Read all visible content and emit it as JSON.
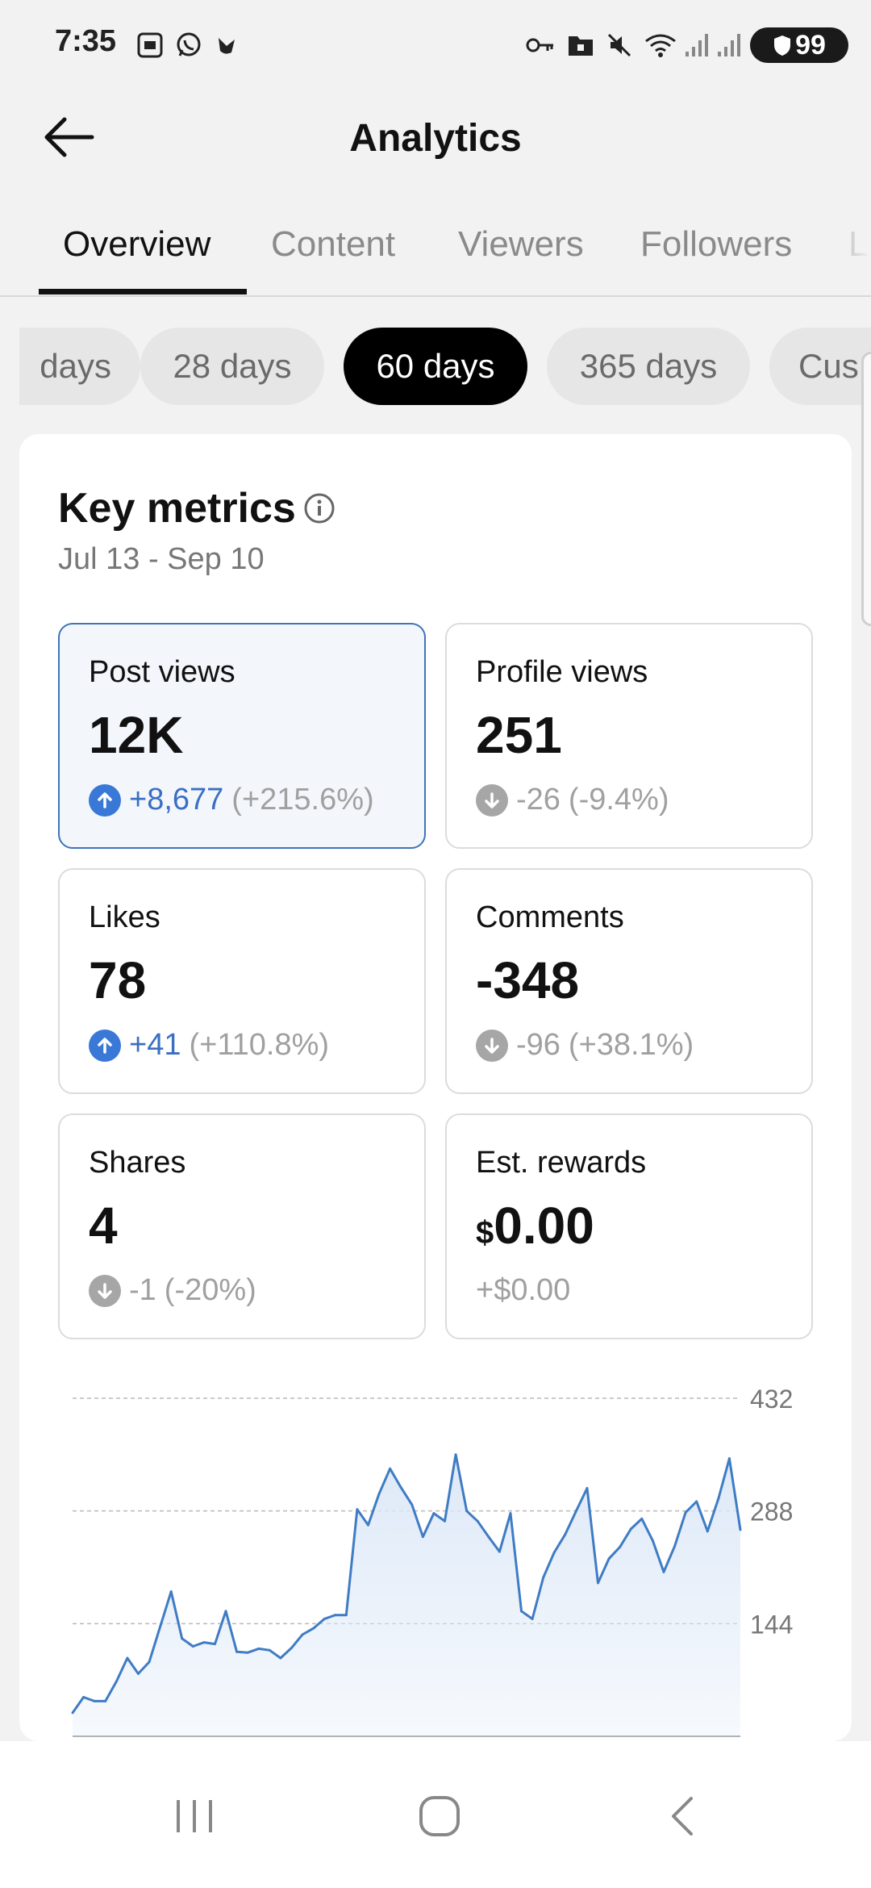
{
  "status_bar": {
    "time": "7:35",
    "left_icons": [
      "screenshot-icon",
      "whatsapp-icon",
      "bird-icon"
    ],
    "right_icons": [
      "key-icon",
      "folder-lock-icon",
      "mute-icon",
      "wifi-icon",
      "signal-icon",
      "signal-icon"
    ],
    "battery": "99"
  },
  "header": {
    "title": "Analytics",
    "back_icon": "arrow-left-icon"
  },
  "tabs": [
    {
      "label": "Overview",
      "active": true
    },
    {
      "label": "Content",
      "active": false
    },
    {
      "label": "Viewers",
      "active": false
    },
    {
      "label": "Followers",
      "active": false
    },
    {
      "label": "L",
      "active": false
    }
  ],
  "ranges": [
    {
      "label": "days",
      "active": false
    },
    {
      "label": "28 days",
      "active": false
    },
    {
      "label": "60 days",
      "active": true
    },
    {
      "label": "365 days",
      "active": false
    },
    {
      "label": "Cus",
      "active": false
    }
  ],
  "key_metrics": {
    "title": "Key metrics",
    "date_range": "Jul 13 - Sep 10",
    "items": [
      {
        "label": "Post views",
        "value": "12K",
        "direction": "up",
        "delta": "+8,677",
        "pct": "(+215.6%)",
        "selected": true
      },
      {
        "label": "Profile views",
        "value": "251",
        "direction": "down",
        "delta": "-26",
        "pct": "(-9.4%)",
        "selected": false
      },
      {
        "label": "Likes",
        "value": "78",
        "direction": "up",
        "delta": "+41",
        "pct": "(+110.8%)",
        "selected": false
      },
      {
        "label": "Comments",
        "value": "-348",
        "direction": "down",
        "delta": "-96",
        "pct": "(+38.1%)",
        "selected": false
      },
      {
        "label": "Shares",
        "value": "4",
        "direction": "down",
        "delta": "-1",
        "pct": "(-20%)",
        "selected": false
      },
      {
        "label": "Est. rewards",
        "currency": "$",
        "value": "0.00",
        "direction": "none",
        "delta": "+$0.00",
        "pct": "",
        "selected": false
      }
    ]
  },
  "colors": {
    "accent_blue": "#3a78d8",
    "line": "#3f7cc4",
    "fill": "#dce8f7",
    "chip_active": "#000000",
    "chip_inactive": "#e6e6e6"
  },
  "chart_data": {
    "type": "area",
    "ylim": [
      0,
      432
    ],
    "y_ticks": [
      432,
      288,
      144
    ],
    "grid": true,
    "series": [
      {
        "values": [
          30,
          50,
          45,
          45,
          70,
          100,
          80,
          95,
          140,
          185,
          125,
          115,
          120,
          118,
          160,
          108,
          107,
          112,
          110,
          100,
          113,
          130,
          138,
          150,
          155,
          155,
          290,
          270,
          310,
          342,
          318,
          296,
          255,
          285,
          275,
          360,
          288,
          275,
          255,
          236,
          285,
          160,
          150,
          203,
          235,
          258,
          288,
          317,
          196,
          227,
          242,
          265,
          278,
          250,
          210,
          243,
          286,
          300,
          262,
          304,
          355,
          264
        ]
      }
    ]
  },
  "navbar": {
    "icons": [
      "recents-icon",
      "home-icon",
      "back-nav-icon"
    ]
  }
}
